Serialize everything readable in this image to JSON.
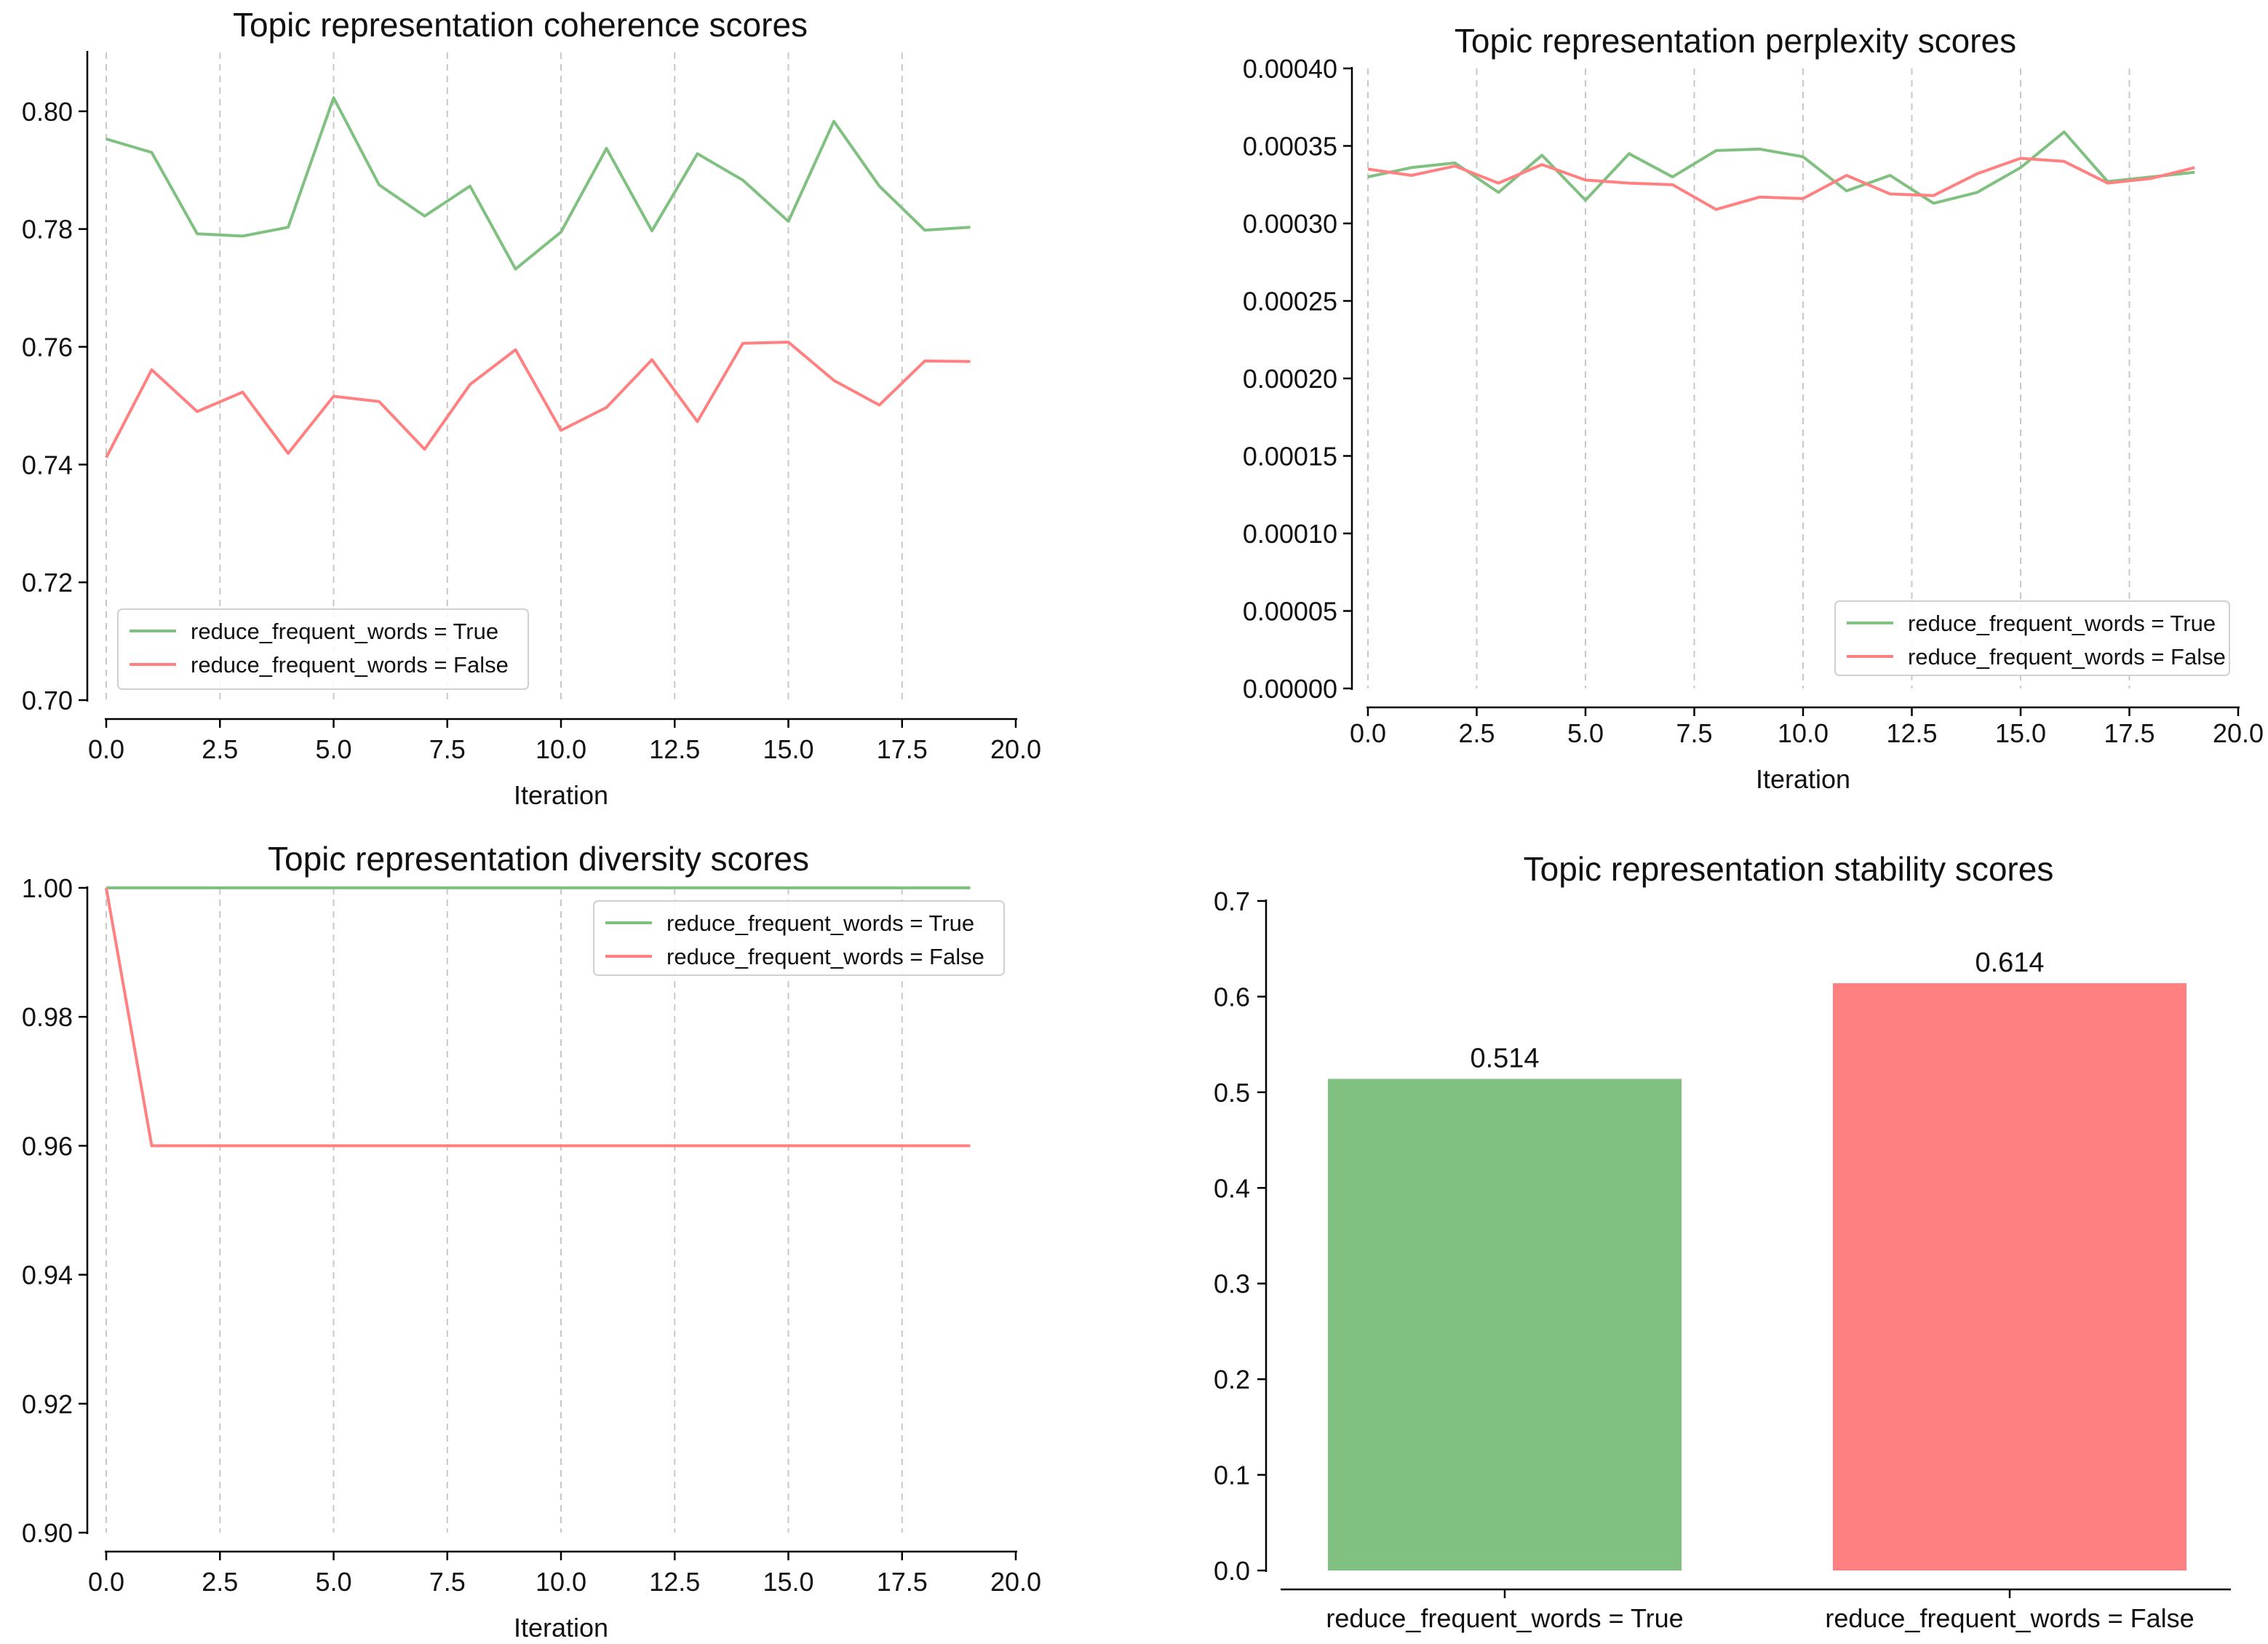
{
  "chart_data": [
    {
      "type": "line",
      "title": "Topic representation coherence scores",
      "xlabel": "Iteration",
      "ylabel": "",
      "xlim": [
        0,
        20
      ],
      "ylim": [
        0.7,
        0.81
      ],
      "xticks": [
        "0.0",
        "2.5",
        "5.0",
        "7.5",
        "10.0",
        "12.5",
        "15.0",
        "17.5",
        "20.0"
      ],
      "yticks": [
        "0.70",
        "0.72",
        "0.74",
        "0.76",
        "0.78",
        "0.80"
      ],
      "grid": "vertical dashed",
      "legend_position": "lower-left",
      "x": [
        0,
        1,
        2,
        3,
        4,
        5,
        6,
        7,
        8,
        9,
        10,
        11,
        12,
        13,
        14,
        15,
        16,
        17,
        18,
        19
      ],
      "series": [
        {
          "name": "reduce_frequent_words = True",
          "color": "#80c080",
          "values": [
            0.7953,
            0.793,
            0.7792,
            0.7788,
            0.7803,
            0.8023,
            0.7875,
            0.7822,
            0.7873,
            0.7732,
            0.7795,
            0.7937,
            0.7797,
            0.7928,
            0.7883,
            0.7813,
            0.7983,
            0.7873,
            0.7798,
            0.7803
          ]
        },
        {
          "name": "reduce_frequent_words = False",
          "color": "#ff8080",
          "values": [
            0.7412,
            0.7561,
            0.749,
            0.7523,
            0.7419,
            0.7516,
            0.7507,
            0.7426,
            0.7536,
            0.7595,
            0.7458,
            0.7497,
            0.7578,
            0.7473,
            0.7606,
            0.7608,
            0.7543,
            0.7501,
            0.7576,
            0.7575
          ]
        }
      ]
    },
    {
      "type": "line",
      "title": "Topic representation perplexity scores",
      "xlabel": "Iteration",
      "ylabel": "",
      "xlim": [
        0,
        20
      ],
      "ylim": [
        0.0,
        0.0004
      ],
      "xticks": [
        "0.0",
        "2.5",
        "5.0",
        "7.5",
        "10.0",
        "12.5",
        "15.0",
        "17.5",
        "20.0"
      ],
      "yticks": [
        "0.00000",
        "0.00005",
        "0.00010",
        "0.00015",
        "0.00020",
        "0.00025",
        "0.00030",
        "0.00035",
        "0.00040"
      ],
      "grid": "vertical dashed",
      "legend_position": "lower-right",
      "x": [
        0,
        1,
        2,
        3,
        4,
        5,
        6,
        7,
        8,
        9,
        10,
        11,
        12,
        13,
        14,
        15,
        16,
        17,
        18,
        19
      ],
      "series": [
        {
          "name": "reduce_frequent_words = True",
          "color": "#80c080",
          "values": [
            0.00033,
            0.000336,
            0.000339,
            0.00032,
            0.000344,
            0.000315,
            0.000345,
            0.00033,
            0.000347,
            0.000348,
            0.000343,
            0.000321,
            0.000331,
            0.000313,
            0.00032,
            0.000336,
            0.000359,
            0.000327,
            0.00033,
            0.000333
          ]
        },
        {
          "name": "reduce_frequent_words = False",
          "color": "#ff8080",
          "values": [
            0.000335,
            0.000331,
            0.000337,
            0.000326,
            0.000338,
            0.000328,
            0.000326,
            0.000325,
            0.000309,
            0.000317,
            0.000316,
            0.000331,
            0.000319,
            0.000318,
            0.000332,
            0.000342,
            0.00034,
            0.000326,
            0.000329,
            0.000336
          ]
        }
      ]
    },
    {
      "type": "line",
      "title": "Topic representation diversity scores",
      "xlabel": "Iteration",
      "ylabel": "",
      "xlim": [
        0,
        20
      ],
      "ylim": [
        0.9,
        1.0
      ],
      "xticks": [
        "0.0",
        "2.5",
        "5.0",
        "7.5",
        "10.0",
        "12.5",
        "15.0",
        "17.5",
        "20.0"
      ],
      "yticks": [
        "0.90",
        "0.92",
        "0.94",
        "0.96",
        "0.98",
        "1.00"
      ],
      "grid": "vertical dashed",
      "legend_position": "upper-right",
      "x": [
        0,
        1,
        2,
        3,
        4,
        5,
        6,
        7,
        8,
        9,
        10,
        11,
        12,
        13,
        14,
        15,
        16,
        17,
        18,
        19
      ],
      "series": [
        {
          "name": "reduce_frequent_words = True",
          "color": "#80c080",
          "values": [
            1.0,
            1.0,
            1.0,
            1.0,
            1.0,
            1.0,
            1.0,
            1.0,
            1.0,
            1.0,
            1.0,
            1.0,
            1.0,
            1.0,
            1.0,
            1.0,
            1.0,
            1.0,
            1.0,
            1.0
          ]
        },
        {
          "name": "reduce_frequent_words = False",
          "color": "#ff8080",
          "values": [
            1.0,
            0.96,
            0.96,
            0.96,
            0.96,
            0.96,
            0.96,
            0.96,
            0.96,
            0.96,
            0.96,
            0.96,
            0.96,
            0.96,
            0.96,
            0.96,
            0.96,
            0.96,
            0.96,
            0.96
          ]
        }
      ]
    },
    {
      "type": "bar",
      "title": "Topic representation stability scores",
      "xlabel": "",
      "ylabel": "",
      "ylim": [
        0.0,
        0.7
      ],
      "yticks": [
        "0.0",
        "0.1",
        "0.2",
        "0.3",
        "0.4",
        "0.5",
        "0.6",
        "0.7"
      ],
      "categories": [
        "reduce_frequent_words = True",
        "reduce_frequent_words = False"
      ],
      "values": [
        0.514,
        0.614
      ],
      "data_labels": [
        "0.514",
        "0.614"
      ],
      "colors": [
        "#80c080",
        "#ff8080"
      ]
    }
  ]
}
